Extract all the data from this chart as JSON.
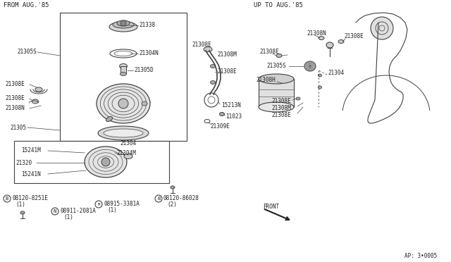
{
  "bg_color": "#ffffff",
  "line_color": "#404040",
  "text_color": "#202020",
  "title_left": "FROM AUG.'85",
  "title_right": "UP TO AUG.'85",
  "footnote": "AP: 3•0005",
  "fs": 5.5,
  "fst": 6.5
}
